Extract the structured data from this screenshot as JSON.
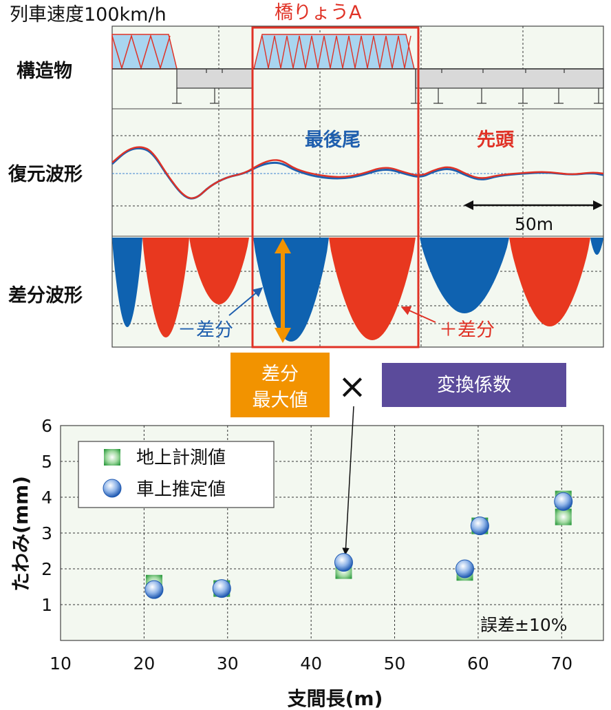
{
  "header": {
    "speed_label": "列車速度100km/h",
    "bridge_label": "橋りょうA"
  },
  "rows": {
    "structure_label": "構造物",
    "restored_label": "復元波形",
    "diff_label": "差分波形"
  },
  "restored": {
    "rear_label": "最後尾",
    "front_label": "先頭",
    "scale_label": "50m",
    "rear_color": "#1f5fae",
    "front_color": "#e03226"
  },
  "diff": {
    "minus_label": "－差分",
    "plus_label": "＋差分",
    "minus_color": "#0f62b0",
    "plus_color": "#e8381f"
  },
  "formula": {
    "max_label_line1": "差分",
    "max_label_line2": "最大値",
    "times_symbol": "×",
    "coef_label": "変換係数",
    "max_color": "#f29300",
    "coef_color": "#5b4b9b"
  },
  "chart_data": {
    "type": "scatter",
    "xlabel": "支間長(m)",
    "ylabel": "たわみ(mm)",
    "xlim": [
      10,
      75
    ],
    "ylim": [
      0,
      6
    ],
    "xticks": [
      10,
      20,
      30,
      40,
      50,
      60,
      70
    ],
    "yticks": [
      1,
      2,
      3,
      4,
      5,
      6
    ],
    "grid": true,
    "legend_position": "top-left",
    "annotation": "誤差±10%",
    "series": [
      {
        "name": "地上計測値",
        "marker": "square",
        "color": "#2fa84f",
        "points": [
          [
            21.2,
            1.6
          ],
          [
            29.3,
            1.45
          ],
          [
            43.9,
            1.95
          ],
          [
            58.4,
            1.9
          ],
          [
            60.2,
            3.2
          ],
          [
            70.2,
            3.45
          ],
          [
            70.2,
            3.95
          ]
        ]
      },
      {
        "name": "車上推定値",
        "marker": "circle",
        "color": "#2f6fc0",
        "points": [
          [
            21.2,
            1.42
          ],
          [
            29.3,
            1.45
          ],
          [
            43.9,
            2.18
          ],
          [
            58.4,
            2.0
          ],
          [
            60.2,
            3.2
          ],
          [
            70.2,
            3.88
          ]
        ]
      }
    ]
  }
}
